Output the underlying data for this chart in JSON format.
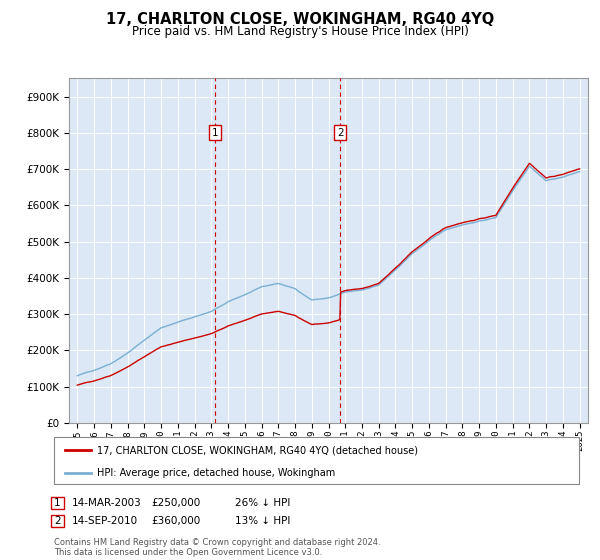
{
  "title": "17, CHARLTON CLOSE, WOKINGHAM, RG40 4YQ",
  "subtitle": "Price paid vs. HM Land Registry's House Price Index (HPI)",
  "legend_line1": "17, CHARLTON CLOSE, WOKINGHAM, RG40 4YQ (detached house)",
  "legend_line2": "HPI: Average price, detached house, Wokingham",
  "footer": "Contains HM Land Registry data © Crown copyright and database right 2024.\nThis data is licensed under the Open Government Licence v3.0.",
  "sale1_date": "14-MAR-2003",
  "sale1_price": 250000,
  "sale1_note": "26% ↓ HPI",
  "sale2_date": "14-SEP-2010",
  "sale2_price": 360000,
  "sale2_note": "13% ↓ HPI",
  "line_color_red": "#cc0000",
  "line_color_blue": "#7bafd4",
  "background_color": "#dce8f5",
  "ylim": [
    0,
    950000
  ],
  "yticks": [
    0,
    100000,
    200000,
    300000,
    400000,
    500000,
    600000,
    700000,
    800000,
    900000
  ],
  "xlim_start": 1994.5,
  "xlim_end": 2025.5,
  "xticks": [
    1995,
    1996,
    1997,
    1998,
    1999,
    2000,
    2001,
    2002,
    2003,
    2004,
    2005,
    2006,
    2007,
    2008,
    2009,
    2010,
    2011,
    2012,
    2013,
    2014,
    2015,
    2016,
    2017,
    2018,
    2019,
    2020,
    2021,
    2022,
    2023,
    2024,
    2025
  ],
  "sale1_x": 2003.2,
  "sale2_x": 2010.7,
  "marker1_y": 800000,
  "marker2_y": 800000
}
